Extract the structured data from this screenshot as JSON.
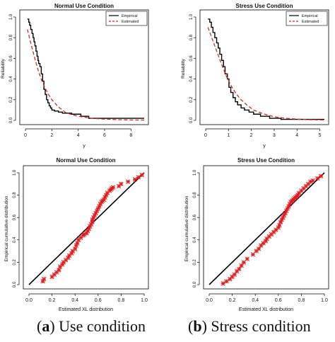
{
  "captions": {
    "a_label": "a",
    "a_text": "Use condition",
    "b_label": "b",
    "b_text": "Stress condition"
  },
  "chart_data": [
    {
      "type": "line",
      "title": "Normal Use Condition",
      "xlabel": "y",
      "ylabel": "Reliability",
      "xlim": [
        0,
        9
      ],
      "ylim": [
        0,
        1
      ],
      "xticks": [
        0,
        2,
        4,
        6,
        8
      ],
      "yticks": [
        0.0,
        0.2,
        0.4,
        0.6,
        0.8,
        1.0
      ],
      "legend_position": "top-right",
      "series": [
        {
          "name": "Empirical",
          "style": "step",
          "color": "#000000",
          "x": [
            0.15,
            0.25,
            0.32,
            0.4,
            0.5,
            0.58,
            0.65,
            0.72,
            0.8,
            0.88,
            0.95,
            1.0,
            1.1,
            1.2,
            1.3,
            1.4,
            1.5,
            1.6,
            1.7,
            1.8,
            1.9,
            2.0,
            2.2,
            2.5,
            2.8,
            3.5,
            4.2,
            4.8,
            9.0
          ],
          "y": [
            0.98,
            0.95,
            0.92,
            0.88,
            0.84,
            0.8,
            0.76,
            0.72,
            0.67,
            0.62,
            0.58,
            0.55,
            0.52,
            0.45,
            0.38,
            0.3,
            0.25,
            0.2,
            0.17,
            0.14,
            0.12,
            0.1,
            0.09,
            0.08,
            0.07,
            0.06,
            0.04,
            0.02,
            0.02
          ]
        },
        {
          "name": "Estimated",
          "style": "dashed",
          "color": "#d62728",
          "x": [
            0.15,
            0.3,
            0.5,
            0.75,
            1.0,
            1.25,
            1.5,
            1.75,
            2.0,
            2.5,
            3.0,
            3.5,
            4.0,
            4.5,
            5.0,
            6.0,
            7.0,
            8.0,
            9.0
          ],
          "y": [
            0.88,
            0.8,
            0.7,
            0.58,
            0.47,
            0.38,
            0.31,
            0.25,
            0.2,
            0.13,
            0.08,
            0.055,
            0.04,
            0.03,
            0.02,
            0.012,
            0.007,
            0.004,
            0.003
          ]
        }
      ]
    },
    {
      "type": "line",
      "title": "Stress Use Condition",
      "xlabel": "y",
      "ylabel": "Reliability",
      "xlim": [
        0,
        5.2
      ],
      "ylim": [
        0,
        1
      ],
      "xticks": [
        0,
        1,
        2,
        3,
        4,
        5
      ],
      "yticks": [
        0.0,
        0.2,
        0.4,
        0.6,
        0.8,
        1.0
      ],
      "legend_position": "top-right",
      "series": [
        {
          "name": "Empirical",
          "style": "step",
          "color": "#000000",
          "x": [
            0.1,
            0.18,
            0.25,
            0.32,
            0.4,
            0.48,
            0.55,
            0.62,
            0.7,
            0.78,
            0.85,
            0.95,
            1.02,
            1.1,
            1.2,
            1.3,
            1.4,
            1.55,
            1.7,
            1.9,
            2.1,
            2.4,
            2.8,
            3.3,
            5.2
          ],
          "y": [
            0.98,
            0.95,
            0.9,
            0.85,
            0.8,
            0.75,
            0.7,
            0.64,
            0.58,
            0.52,
            0.45,
            0.4,
            0.32,
            0.27,
            0.22,
            0.18,
            0.15,
            0.12,
            0.1,
            0.08,
            0.06,
            0.04,
            0.02,
            0.01,
            0.01
          ]
        },
        {
          "name": "Estimated",
          "style": "dashed",
          "color": "#d62728",
          "x": [
            0.1,
            0.2,
            0.35,
            0.5,
            0.7,
            0.9,
            1.1,
            1.3,
            1.5,
            1.8,
            2.1,
            2.5,
            3.0,
            3.5,
            4.0,
            4.5,
            5.2
          ],
          "y": [
            0.9,
            0.84,
            0.75,
            0.66,
            0.54,
            0.43,
            0.34,
            0.27,
            0.21,
            0.15,
            0.1,
            0.065,
            0.035,
            0.02,
            0.012,
            0.007,
            0.004
          ]
        }
      ]
    },
    {
      "type": "scatter",
      "title": "Normal Use Condition",
      "xlabel": "Estimated XL distribution",
      "ylabel": "Empirical cumulative distribution",
      "xlim": [
        0,
        1
      ],
      "ylim": [
        0,
        1
      ],
      "xticks": [
        0.0,
        0.2,
        0.4,
        0.6,
        0.8,
        1.0
      ],
      "yticks": [
        0.0,
        0.2,
        0.4,
        0.6,
        0.8,
        1.0
      ],
      "reference_line": {
        "x": [
          0,
          1
        ],
        "y": [
          0,
          1
        ],
        "color": "#000000"
      },
      "points": {
        "marker": "*",
        "color": "#e41a1c",
        "x": [
          0.12,
          0.13,
          0.2,
          0.22,
          0.24,
          0.26,
          0.27,
          0.29,
          0.3,
          0.32,
          0.34,
          0.35,
          0.37,
          0.38,
          0.4,
          0.41,
          0.42,
          0.43,
          0.45,
          0.47,
          0.48,
          0.5,
          0.51,
          0.52,
          0.53,
          0.54,
          0.55,
          0.55,
          0.56,
          0.57,
          0.58,
          0.59,
          0.6,
          0.61,
          0.62,
          0.63,
          0.64,
          0.65,
          0.66,
          0.67,
          0.68,
          0.7,
          0.71,
          0.72,
          0.73,
          0.78,
          0.8,
          0.86,
          0.92,
          0.95,
          0.98
        ],
        "y": [
          0.03,
          0.05,
          0.07,
          0.09,
          0.11,
          0.13,
          0.16,
          0.18,
          0.2,
          0.22,
          0.24,
          0.26,
          0.28,
          0.3,
          0.32,
          0.35,
          0.37,
          0.4,
          0.42,
          0.44,
          0.45,
          0.46,
          0.48,
          0.5,
          0.52,
          0.54,
          0.56,
          0.58,
          0.6,
          0.62,
          0.64,
          0.66,
          0.68,
          0.7,
          0.72,
          0.74,
          0.75,
          0.76,
          0.78,
          0.8,
          0.82,
          0.84,
          0.85,
          0.86,
          0.87,
          0.88,
          0.9,
          0.92,
          0.94,
          0.96,
          0.98
        ]
      }
    },
    {
      "type": "scatter",
      "title": "Stress Use Condition",
      "xlabel": "Estimated XL distribution",
      "ylabel": "Empirical cumulative distribution",
      "xlim": [
        0,
        1
      ],
      "ylim": [
        0,
        1
      ],
      "xticks": [
        0.0,
        0.2,
        0.4,
        0.6,
        0.8,
        1.0
      ],
      "yticks": [
        0.0,
        0.2,
        0.4,
        0.6,
        0.8,
        1.0
      ],
      "reference_line": {
        "x": [
          0,
          1
        ],
        "y": [
          0,
          1
        ],
        "color": "#000000"
      },
      "points": {
        "marker": "*",
        "color": "#e41a1c",
        "x": [
          0.12,
          0.15,
          0.18,
          0.2,
          0.22,
          0.24,
          0.26,
          0.28,
          0.3,
          0.33,
          0.38,
          0.41,
          0.43,
          0.45,
          0.47,
          0.49,
          0.5,
          0.52,
          0.54,
          0.56,
          0.58,
          0.6,
          0.61,
          0.62,
          0.63,
          0.64,
          0.65,
          0.66,
          0.67,
          0.68,
          0.69,
          0.7,
          0.71,
          0.72,
          0.73,
          0.74,
          0.75,
          0.76,
          0.77,
          0.78,
          0.8,
          0.82,
          0.84,
          0.86,
          0.88,
          0.9,
          0.94,
          0.97
        ],
        "y": [
          0.01,
          0.03,
          0.05,
          0.07,
          0.09,
          0.12,
          0.14,
          0.17,
          0.2,
          0.23,
          0.27,
          0.3,
          0.32,
          0.35,
          0.37,
          0.39,
          0.41,
          0.43,
          0.45,
          0.47,
          0.49,
          0.51,
          0.53,
          0.56,
          0.58,
          0.6,
          0.62,
          0.64,
          0.66,
          0.68,
          0.7,
          0.72,
          0.74,
          0.75,
          0.76,
          0.77,
          0.78,
          0.79,
          0.8,
          0.82,
          0.84,
          0.86,
          0.88,
          0.9,
          0.92,
          0.93,
          0.95,
          0.97
        ]
      }
    }
  ]
}
